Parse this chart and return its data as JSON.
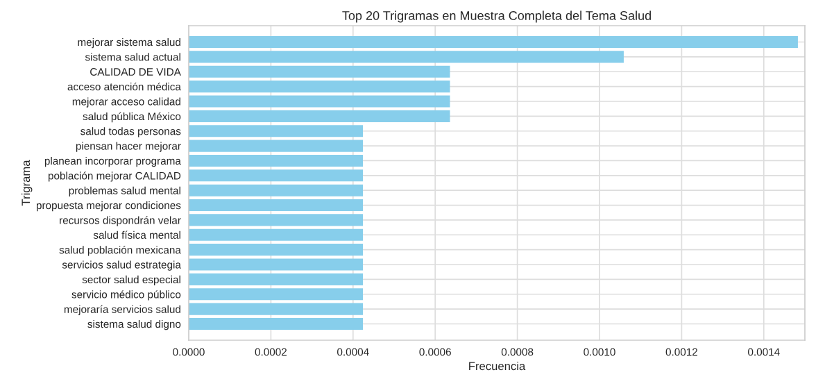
{
  "chart_data": {
    "type": "bar",
    "orientation": "horizontal",
    "title": "Top 20 Trigramas en Muestra Completa del Tema Salud",
    "xlabel": "Frecuencia",
    "ylabel": "Trigrama",
    "categories": [
      "mejorar sistema salud",
      "sistema salud actual",
      "CALIDAD DE VIDA",
      "acceso atención médica",
      "mejorar acceso calidad",
      "salud pública México",
      "salud todas personas",
      "piensan hacer mejorar",
      "planean incorporar programa",
      "población mejorar CALIDAD",
      "problemas salud mental",
      "propuesta mejorar condiciones",
      "recursos dispondrán velar",
      "salud física mental",
      "salud población mexicana",
      "servicios salud estrategia",
      "sector salud especial",
      "servicio médico público",
      "mejoraría servicios salud",
      "sistema salud digno"
    ],
    "values": [
      0.001483,
      0.001059,
      0.000636,
      0.000636,
      0.000636,
      0.000636,
      0.000424,
      0.000424,
      0.000424,
      0.000424,
      0.000424,
      0.000424,
      0.000424,
      0.000424,
      0.000424,
      0.000424,
      0.000424,
      0.000424,
      0.000424,
      0.000424
    ],
    "color": "#87ceeb",
    "xlim": [
      0,
      0.0015
    ],
    "xticks": [
      {
        "value": 0,
        "label": "0.0000"
      },
      {
        "value": 0.0002,
        "label": "0.0002"
      },
      {
        "value": 0.0004,
        "label": "0.0004"
      },
      {
        "value": 0.0006,
        "label": "0.0006"
      },
      {
        "value": 0.0008,
        "label": "0.0008"
      },
      {
        "value": 0.001,
        "label": "0.0010"
      },
      {
        "value": 0.0012,
        "label": "0.0012"
      },
      {
        "value": 0.0014,
        "label": "0.0014"
      }
    ],
    "grid": true
  }
}
